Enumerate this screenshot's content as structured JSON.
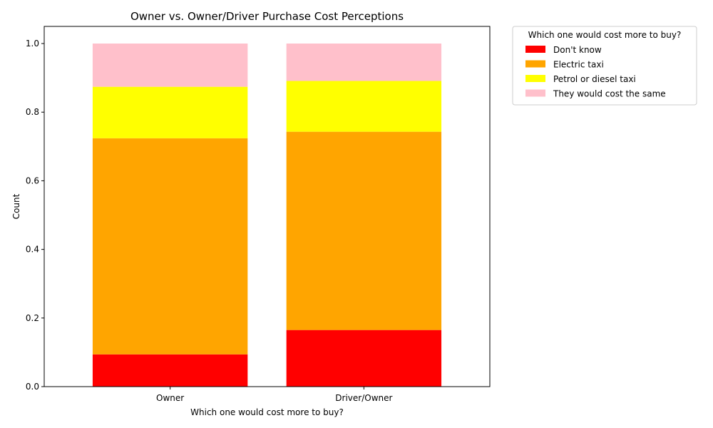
{
  "chart_data": {
    "type": "bar",
    "stacked": true,
    "title": "Owner vs. Owner/Driver Purchase Cost Perceptions",
    "xlabel": "Which one would cost more to buy?",
    "ylabel": "Count",
    "ylim": [
      0,
      1.05
    ],
    "yticks": [
      "0.0",
      "0.2",
      "0.4",
      "0.6",
      "0.8",
      "1.0"
    ],
    "categories": [
      "Owner",
      "Driver/Owner"
    ],
    "series": [
      {
        "name": "Don't know",
        "color": "#ff0000",
        "values": [
          0.094,
          0.165
        ]
      },
      {
        "name": "Electric taxi",
        "color": "#ffa500",
        "values": [
          0.63,
          0.578
        ]
      },
      {
        "name": "Petrol or diesel taxi",
        "color": "#ffff00",
        "values": [
          0.15,
          0.148
        ]
      },
      {
        "name": "They would cost the same",
        "color": "#ffc0cb",
        "values": [
          0.126,
          0.109
        ]
      }
    ],
    "legend": {
      "title": "Which one would cost more to buy?",
      "placement": "outside-top-right"
    },
    "grid": false
  }
}
